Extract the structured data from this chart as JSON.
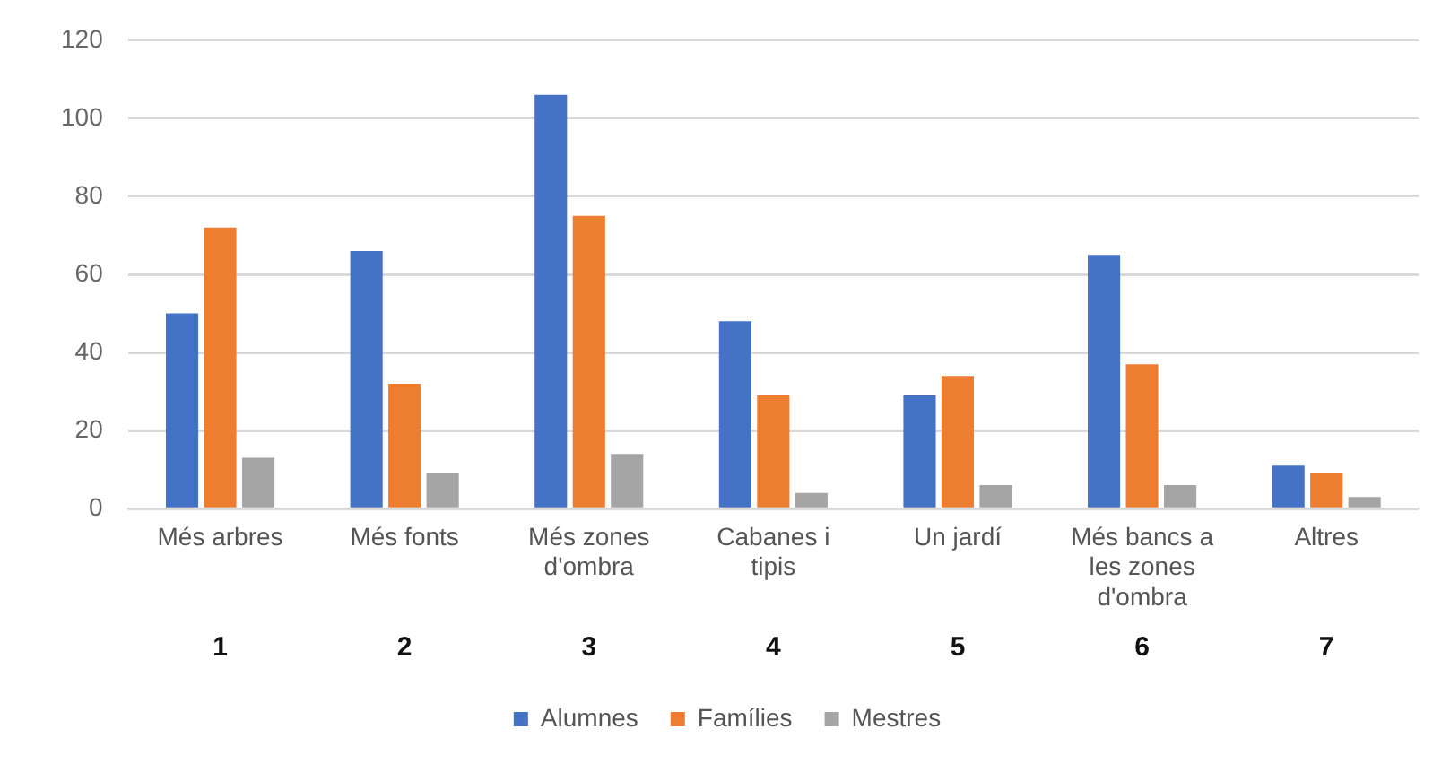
{
  "chart_data": {
    "type": "bar",
    "categories": [
      "Més arbres",
      "Més fonts",
      "Més zones d'ombra",
      "Cabanes i tipis",
      "Un jardí",
      "Més bancs a les zones d'ombra",
      "Altres"
    ],
    "series": [
      {
        "name": "Alumnes",
        "color": "#4472c4",
        "values": [
          50,
          66,
          106,
          48,
          29,
          65,
          11
        ]
      },
      {
        "name": "Famílies",
        "color": "#ed7d31",
        "values": [
          72,
          32,
          75,
          29,
          34,
          37,
          9
        ]
      },
      {
        "name": "Mestres",
        "color": "#a5a5a5",
        "values": [
          13,
          9,
          14,
          4,
          6,
          6,
          3
        ]
      }
    ],
    "ylim": [
      0,
      120
    ],
    "yticks": [
      0,
      20,
      40,
      60,
      80,
      100,
      120
    ],
    "grid": "y",
    "legend": "bottom",
    "annotations": [
      "1",
      "2",
      "3",
      "4",
      "5",
      "6",
      "7"
    ]
  }
}
